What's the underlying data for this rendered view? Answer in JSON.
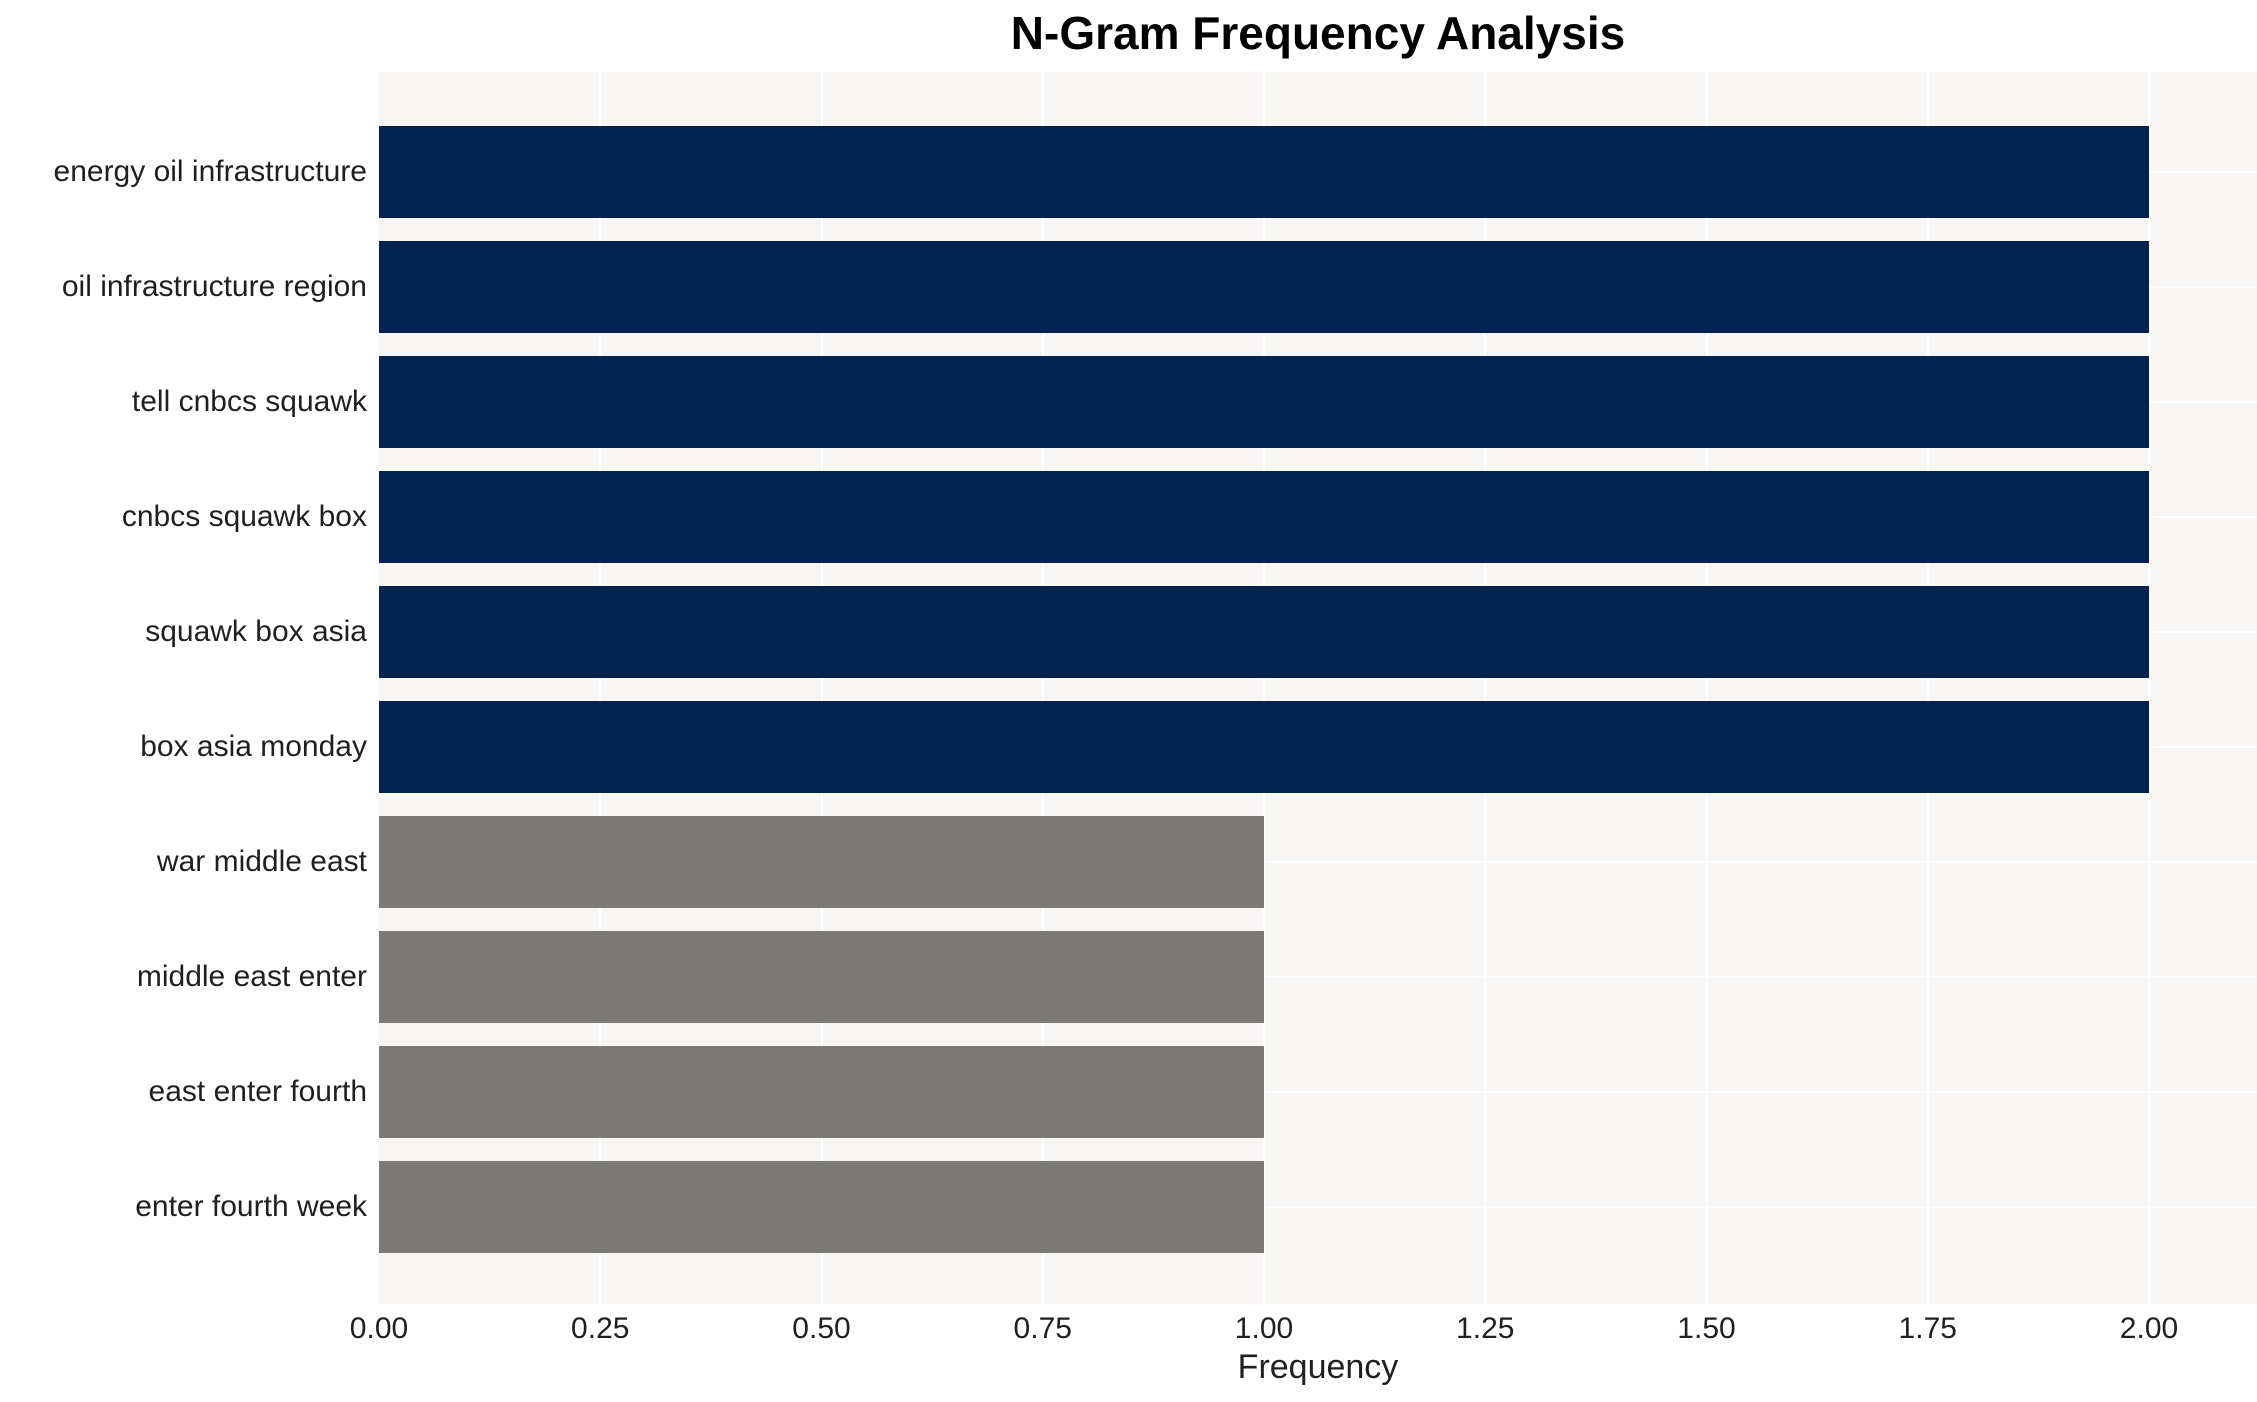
{
  "chart_data": {
    "type": "bar",
    "orientation": "horizontal",
    "title": "N-Gram Frequency Analysis",
    "xlabel": "Frequency",
    "ylabel": "",
    "categories": [
      "energy oil infrastructure",
      "oil infrastructure region",
      "tell cnbcs squawk",
      "cnbcs squawk box",
      "squawk box asia",
      "box asia monday",
      "war middle east",
      "middle east enter",
      "east enter fourth",
      "enter fourth week"
    ],
    "values": [
      2,
      2,
      2,
      2,
      2,
      2,
      1,
      1,
      1,
      1
    ],
    "bar_colors": [
      "#02234f",
      "#02234f",
      "#02234f",
      "#02234f",
      "#02234f",
      "#02234f",
      "#7b7a77",
      "#7b7a77",
      "#7b7a77",
      "#7b7a77"
    ],
    "xlim": [
      0,
      2.12
    ],
    "xticks": [
      0,
      0.25,
      0.5,
      0.75,
      1.0,
      1.25,
      1.5,
      1.75,
      2.0
    ],
    "xtick_labels": [
      "0.00",
      "0.25",
      "0.50",
      "0.75",
      "1.00",
      "1.25",
      "1.50",
      "1.75",
      "2.00"
    ],
    "grid": "white vertical gridlines at each x tick and white horizontal gridlines at each category center",
    "legend_position": "none"
  },
  "colors": {
    "figure_background": "#ffffff",
    "plot_background": "#f7f6f5",
    "gridline": "#ffffff",
    "bar_high": "#02234f",
    "bar_low": "#7b7a77",
    "axis_text": "#1f1f1f",
    "title_text": "#000000"
  }
}
